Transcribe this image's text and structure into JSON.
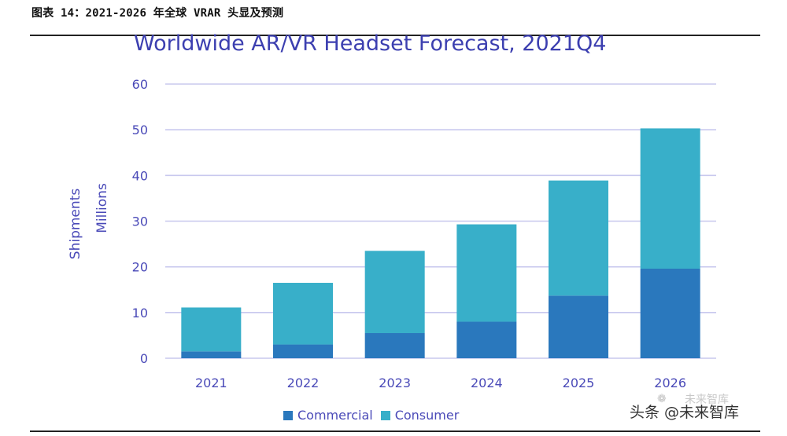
{
  "caption": "图表 14：2021-2026 年全球 VRAR 头显及预测",
  "watermark_text": "未来智库",
  "source_text": "头条 @未来智库",
  "colors": {
    "commercial": "#2a78bd",
    "consumer": "#38afc9",
    "grid": "#c8c8ee",
    "text": "#4a4ab8"
  },
  "chart_data": {
    "type": "bar",
    "stacked": true,
    "title": "Worldwide AR/VR Headset Forecast, 2021Q4",
    "ylabel_line1": "Shipments",
    "ylabel_line2": "Millions",
    "xlabel": "",
    "ylim": [
      0,
      60
    ],
    "yticks": [
      0,
      10,
      20,
      30,
      40,
      50,
      60
    ],
    "grid": true,
    "legend_position": "bottom",
    "categories": [
      "2021",
      "2022",
      "2023",
      "2024",
      "2025",
      "2026"
    ],
    "series": [
      {
        "name": "Commercial",
        "values": [
          1.5,
          3.0,
          5.5,
          8.0,
          13.7,
          19.6
        ]
      },
      {
        "name": "Consumer",
        "values": [
          9.6,
          13.5,
          18.0,
          21.3,
          25.2,
          30.7
        ]
      }
    ]
  }
}
